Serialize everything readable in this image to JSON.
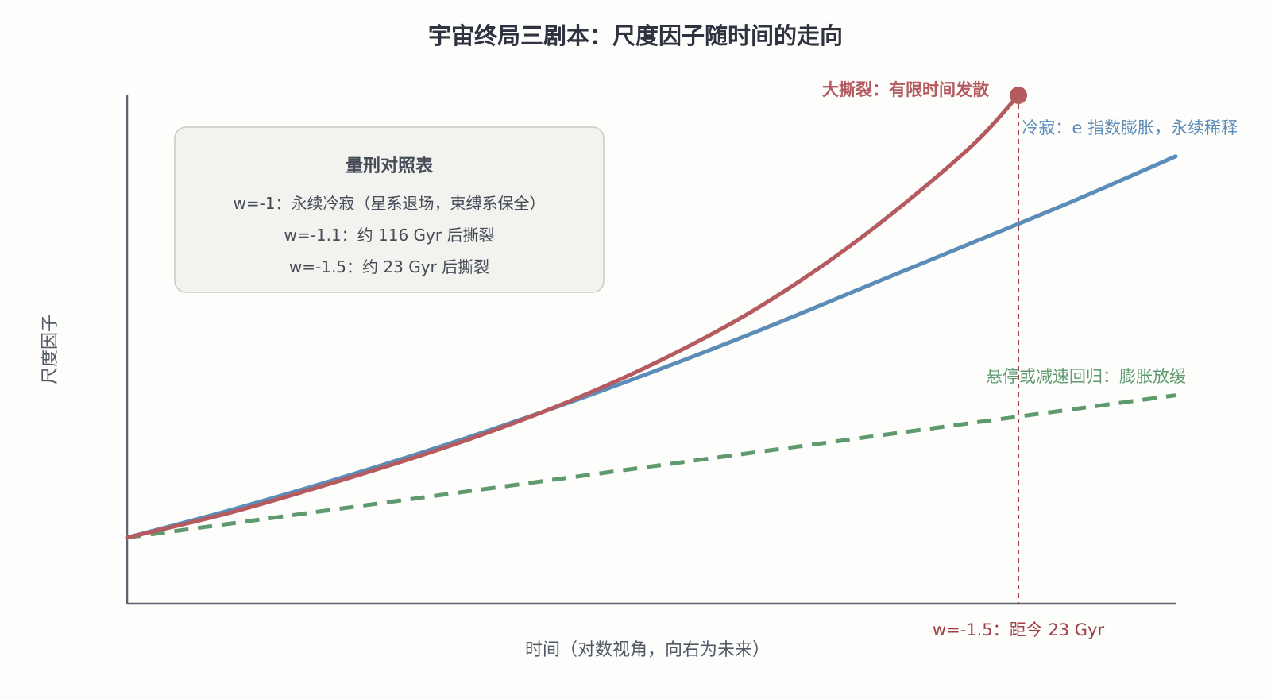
{
  "chart_data": {
    "type": "line",
    "title": "宇宙终局三剧本：尺度因子随时间的走向",
    "xlabel": "时间（对数视角，向右为未来）",
    "ylabel": "尺度因子",
    "xlim": [
      0,
      1
    ],
    "ylim": [
      0,
      1
    ],
    "grid": false,
    "series": [
      {
        "name": "冷寂：e 指数膨胀，永续稀释",
        "color": "#5b8db8",
        "style": "solid",
        "x": [
          0,
          0.1,
          0.2,
          0.3,
          0.4,
          0.5,
          0.6,
          0.7,
          0.8,
          0.9,
          1.0
        ],
        "y": [
          0.13,
          0.185,
          0.245,
          0.31,
          0.38,
          0.455,
          0.535,
          0.62,
          0.705,
          0.79,
          0.88
        ]
      },
      {
        "name": "大撕裂：有限时间发散",
        "color": "#b55a5f",
        "style": "solid",
        "x": [
          0,
          0.1,
          0.2,
          0.3,
          0.4,
          0.5,
          0.6,
          0.7,
          0.8,
          0.85
        ],
        "y": [
          0.13,
          0.18,
          0.24,
          0.305,
          0.38,
          0.47,
          0.58,
          0.72,
          0.89,
          1.0
        ],
        "end_marker": true
      },
      {
        "name": "悬停或减速回归：膨胀放缓",
        "color": "#5f9a6e",
        "style": "dashed",
        "x": [
          0,
          1.0
        ],
        "y": [
          0.13,
          0.41
        ]
      }
    ],
    "annotations": [
      {
        "text": "w=-1.5：距今 23 Gyr",
        "x": 0.85,
        "color": "#9c3e43"
      }
    ],
    "legend": {
      "placement": "top-left",
      "title": "量刑对照表",
      "lines": [
        "w=-1：永续冷寂（星系退场，束缚系保全）",
        "w=-1.1：约 116 Gyr 后撕裂",
        "w=-1.5：约 23 Gyr 后撕裂"
      ]
    }
  }
}
